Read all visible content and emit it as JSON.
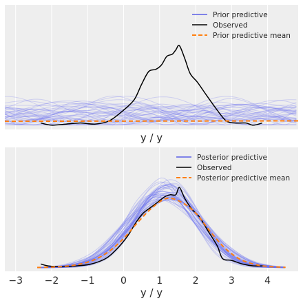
{
  "chart_data": [
    {
      "type": "line",
      "title": "",
      "xlabel": "y / y",
      "ylabel": "",
      "xlim": [
        -3.3,
        4.85
      ],
      "ylim": [
        -0.02,
        0.56
      ],
      "show_xticks": false,
      "grid": true,
      "legend_placement": "top-right",
      "background": "#eeeeee",
      "legend": [
        {
          "label": "Prior predictive",
          "color": "#5a5fe6",
          "style": "solid"
        },
        {
          "label": "Observed",
          "color": "#000000",
          "style": "solid"
        },
        {
          "label": "Prior predictive mean",
          "color": "#ff7f0e",
          "style": "dashed"
        }
      ],
      "series": [
        {
          "name": "Observed",
          "color": "#000000",
          "x": [
            -2.3,
            -2.0,
            -1.6,
            -1.2,
            -0.8,
            -0.4,
            0.0,
            0.3,
            0.5,
            0.7,
            0.9,
            1.05,
            1.2,
            1.35,
            1.45,
            1.55,
            1.7,
            1.85,
            2.05,
            2.3,
            2.6,
            2.85,
            3.1,
            3.4,
            3.6,
            3.85
          ],
          "y": [
            0.01,
            0.0,
            0.005,
            0.01,
            0.005,
            0.02,
            0.07,
            0.12,
            0.19,
            0.25,
            0.26,
            0.28,
            0.32,
            0.33,
            0.35,
            0.37,
            0.31,
            0.24,
            0.2,
            0.14,
            0.07,
            0.02,
            0.01,
            0.01,
            0.0,
            0.01
          ]
        },
        {
          "name": "Prior predictive mean",
          "color": "#ff7f0e",
          "x": [
            -3.3,
            4.85
          ],
          "y": [
            0.018,
            0.02
          ]
        }
      ]
    },
    {
      "type": "line",
      "title": "",
      "xlabel": "y / y",
      "ylabel": "",
      "xlim": [
        -3.3,
        4.85
      ],
      "ylim": [
        -0.02,
        0.66
      ],
      "xticks": [
        -3,
        -2,
        -1,
        0,
        1,
        2,
        3,
        4
      ],
      "grid": true,
      "legend_placement": "top-right",
      "background": "#eeeeee",
      "legend": [
        {
          "label": "Posterior predictive",
          "color": "#5a5fe6",
          "style": "solid"
        },
        {
          "label": "Observed",
          "color": "#000000",
          "style": "solid"
        },
        {
          "label": "Posterior predictive mean",
          "color": "#ff7f0e",
          "style": "dashed"
        }
      ],
      "series": [
        {
          "name": "Observed",
          "color": "#000000",
          "x": [
            -2.3,
            -2.1,
            -1.7,
            -1.3,
            -0.9,
            -0.5,
            -0.2,
            0.1,
            0.35,
            0.55,
            0.75,
            0.95,
            1.15,
            1.3,
            1.45,
            1.55,
            1.7,
            1.9,
            2.1,
            2.35,
            2.6,
            2.75,
            3.0,
            3.3,
            3.6,
            3.9
          ],
          "y": [
            0.02,
            0.01,
            0.005,
            0.01,
            0.02,
            0.05,
            0.1,
            0.17,
            0.25,
            0.3,
            0.33,
            0.36,
            0.39,
            0.4,
            0.4,
            0.44,
            0.38,
            0.32,
            0.28,
            0.2,
            0.12,
            0.05,
            0.04,
            0.02,
            0.01,
            0.01
          ]
        },
        {
          "name": "Posterior predictive mean",
          "color": "#ff7f0e",
          "x": [
            -2.4,
            -2.0,
            -1.6,
            -1.2,
            -0.8,
            -0.4,
            0.0,
            0.4,
            0.8,
            1.2,
            1.6,
            2.0,
            2.4,
            2.8,
            3.2,
            3.6,
            4.0,
            4.5
          ],
          "y": [
            0.001,
            0.003,
            0.008,
            0.02,
            0.045,
            0.09,
            0.16,
            0.25,
            0.33,
            0.38,
            0.36,
            0.3,
            0.2,
            0.11,
            0.05,
            0.02,
            0.007,
            0.002
          ]
        }
      ]
    }
  ]
}
